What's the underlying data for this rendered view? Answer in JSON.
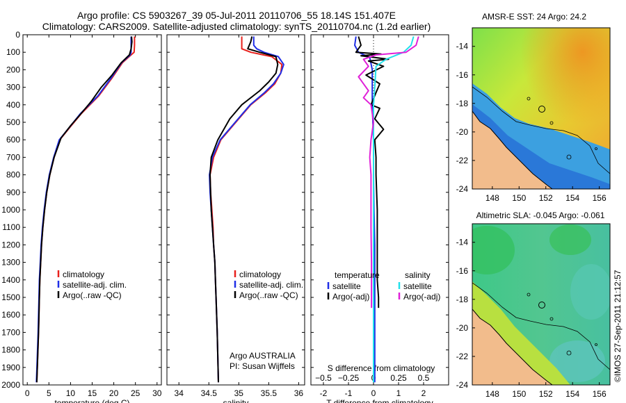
{
  "header": {
    "title_line1": "Argo profile: CS 5903267_39 05-Jul-2011 20110706_55 18.14S 151.407E",
    "title_line2": "Climatology: CARS2009. Satellite-adjusted climatology: synTS_20110704.nc (1.2d earlier)"
  },
  "credits": {
    "institution": "Argo AUSTRALIA",
    "pi": "PI: Susan Wijffels",
    "stamp": "©IMOS 27-Sep-2011 21:12:57"
  },
  "colors": {
    "climatology": "#e8201c",
    "satellite": "#1f2ee6",
    "argo": "#000000",
    "sal_satellite": "#22e0ea",
    "sal_argo": "#e020d8",
    "land": "#f2bc8c"
  },
  "chart_data": [
    {
      "type": "line",
      "id": "temperature",
      "xlabel": "temperature (deg C)",
      "xlim": [
        -1,
        31
      ],
      "xticks": [
        0,
        5,
        10,
        15,
        20,
        25,
        30
      ],
      "ylim": [
        2000,
        0
      ],
      "yticks": [
        0,
        100,
        200,
        300,
        400,
        500,
        600,
        700,
        800,
        900,
        1000,
        1100,
        1200,
        1300,
        1400,
        1500,
        1600,
        1700,
        1800,
        1900,
        2000
      ],
      "legend": [
        "climatology",
        "satellite-adj. clim.",
        "Argo(..raw -QC)"
      ],
      "series": [
        {
          "name": "climatology",
          "color": "climatology",
          "points": [
            [
              24.8,
              10
            ],
            [
              24.8,
              60
            ],
            [
              24.7,
              100
            ],
            [
              24.0,
              115
            ],
            [
              22.0,
              160
            ],
            [
              19.5,
              250
            ],
            [
              16.5,
              350
            ],
            [
              12.5,
              450
            ],
            [
              9.8,
              530
            ],
            [
              7.5,
              600
            ],
            [
              6.2,
              700
            ],
            [
              5.2,
              800
            ],
            [
              4.5,
              900
            ],
            [
              4.0,
              1000
            ],
            [
              3.6,
              1100
            ],
            [
              3.3,
              1200
            ],
            [
              3.1,
              1300
            ],
            [
              2.9,
              1400
            ],
            [
              2.8,
              1500
            ],
            [
              2.6,
              1700
            ],
            [
              2.4,
              1850
            ],
            [
              2.2,
              1985
            ]
          ]
        },
        {
          "name": "satellite-adj. clim.",
          "color": "satellite",
          "points": [
            [
              24.0,
              10
            ],
            [
              24.0,
              60
            ],
            [
              24.0,
              100
            ],
            [
              23.8,
              115
            ],
            [
              21.8,
              160
            ],
            [
              19.3,
              250
            ],
            [
              16.3,
              350
            ],
            [
              12.3,
              450
            ],
            [
              9.7,
              530
            ],
            [
              7.4,
              600
            ],
            [
              6.1,
              700
            ],
            [
              5.1,
              800
            ],
            [
              4.4,
              900
            ],
            [
              3.9,
              1000
            ],
            [
              3.5,
              1100
            ],
            [
              3.2,
              1200
            ],
            [
              3.0,
              1300
            ],
            [
              2.8,
              1400
            ],
            [
              2.7,
              1500
            ],
            [
              2.5,
              1700
            ],
            [
              2.3,
              1850
            ],
            [
              2.1,
              1985
            ]
          ]
        },
        {
          "name": "Argo(..raw -QC)",
          "color": "argo",
          "points": [
            [
              24.1,
              10
            ],
            [
              24.2,
              40
            ],
            [
              24.0,
              80
            ],
            [
              23.6,
              115
            ],
            [
              21.7,
              160
            ],
            [
              19.6,
              230
            ],
            [
              17.1,
              300
            ],
            [
              14.8,
              380
            ],
            [
              12.1,
              460
            ],
            [
              10.0,
              520
            ],
            [
              7.8,
              590
            ],
            [
              6.2,
              700
            ],
            [
              5.2,
              800
            ],
            [
              4.5,
              900
            ],
            [
              4.0,
              1000
            ],
            [
              3.6,
              1100
            ],
            [
              3.3,
              1200
            ],
            [
              3.1,
              1300
            ],
            [
              2.9,
              1400
            ],
            [
              2.8,
              1500
            ],
            [
              2.6,
              1700
            ],
            [
              2.4,
              1850
            ],
            [
              2.2,
              1985
            ]
          ]
        }
      ]
    },
    {
      "type": "line",
      "id": "salinity",
      "xlabel": "salinity",
      "xlim": [
        33.8,
        36.1
      ],
      "xticks": [
        34,
        34.5,
        35,
        35.5,
        36
      ],
      "ylim": [
        2000,
        0
      ],
      "legend": [
        "climatology",
        "satellite-adj. clim.",
        "Argo(..raw -QC)"
      ],
      "series": [
        {
          "name": "climatology",
          "color": "climatology",
          "points": [
            [
              35.05,
              10
            ],
            [
              35.05,
              60
            ],
            [
              35.05,
              80
            ],
            [
              35.2,
              100
            ],
            [
              35.55,
              125
            ],
            [
              35.72,
              170
            ],
            [
              35.7,
              220
            ],
            [
              35.6,
              280
            ],
            [
              35.45,
              330
            ],
            [
              35.2,
              400
            ],
            [
              34.95,
              500
            ],
            [
              34.7,
              600
            ],
            [
              34.58,
              700
            ],
            [
              34.52,
              800
            ],
            [
              34.53,
              900
            ],
            [
              34.55,
              1000
            ],
            [
              34.57,
              1100
            ],
            [
              34.58,
              1200
            ],
            [
              34.6,
              1300
            ],
            [
              34.61,
              1400
            ],
            [
              34.62,
              1500
            ],
            [
              34.64,
              1700
            ],
            [
              34.65,
              1850
            ],
            [
              34.66,
              1985
            ]
          ]
        },
        {
          "name": "satellite-adj. clim.",
          "color": "satellite",
          "points": [
            [
              35.25,
              10
            ],
            [
              35.25,
              60
            ],
            [
              35.3,
              80
            ],
            [
              35.42,
              100
            ],
            [
              35.66,
              125
            ],
            [
              35.75,
              170
            ],
            [
              35.7,
              220
            ],
            [
              35.58,
              280
            ],
            [
              35.43,
              330
            ],
            [
              35.19,
              400
            ],
            [
              34.94,
              500
            ],
            [
              34.69,
              600
            ],
            [
              34.56,
              700
            ],
            [
              34.51,
              800
            ],
            [
              34.52,
              900
            ],
            [
              34.54,
              1000
            ],
            [
              34.56,
              1100
            ],
            [
              34.58,
              1200
            ],
            [
              34.6,
              1300
            ],
            [
              34.61,
              1400
            ],
            [
              34.62,
              1500
            ],
            [
              34.64,
              1700
            ],
            [
              34.65,
              1850
            ],
            [
              34.66,
              1985
            ]
          ]
        },
        {
          "name": "Argo(..raw -QC)",
          "color": "argo",
          "points": [
            [
              35.22,
              10
            ],
            [
              35.2,
              40
            ],
            [
              35.15,
              80
            ],
            [
              35.35,
              100
            ],
            [
              35.62,
              125
            ],
            [
              35.65,
              170
            ],
            [
              35.62,
              220
            ],
            [
              35.5,
              270
            ],
            [
              35.35,
              320
            ],
            [
              35.05,
              400
            ],
            [
              34.85,
              480
            ],
            [
              34.65,
              600
            ],
            [
              34.54,
              700
            ],
            [
              34.52,
              800
            ],
            [
              34.53,
              900
            ],
            [
              34.54,
              1000
            ],
            [
              34.56,
              1100
            ],
            [
              34.58,
              1200
            ],
            [
              34.6,
              1300
            ],
            [
              34.61,
              1400
            ],
            [
              34.62,
              1500
            ],
            [
              34.64,
              1700
            ],
            [
              34.65,
              1850
            ],
            [
              34.66,
              1985
            ]
          ]
        }
      ]
    },
    {
      "type": "line",
      "id": "differences",
      "xlabel": "T difference from climatology",
      "xlabel_top": "S difference from climatology",
      "xlim": [
        -2.5,
        3
      ],
      "xticks": [
        -2,
        -1,
        0,
        1,
        2
      ],
      "top_ticks": [
        {
          "v": -2,
          "label": "−0.5"
        },
        {
          "v": -1,
          "label": "−0.25"
        },
        {
          "v": 0,
          "label": "0"
        },
        {
          "v": 1,
          "label": "0.25"
        },
        {
          "v": 2,
          "label": "0.5"
        }
      ],
      "ylim": [
        2000,
        0
      ],
      "legend_temperature": {
        "header": "temperature",
        "items": [
          "satellite",
          "Argo(-adj)"
        ]
      },
      "legend_salinity": {
        "header": "salinity",
        "items": [
          "satellite",
          "Argo(-adj)"
        ]
      },
      "series": [
        {
          "name": "temperature satellite",
          "color": "satellite",
          "points": [
            [
              -0.7,
              10
            ],
            [
              -0.75,
              60
            ],
            [
              -0.6,
              100
            ],
            [
              -0.15,
              130
            ],
            [
              -0.05,
              200
            ],
            [
              -0.05,
              400
            ],
            [
              0.0,
              600
            ],
            [
              0.0,
              800
            ],
            [
              0.02,
              1000
            ],
            [
              0.05,
              1200
            ],
            [
              0.05,
              1500
            ],
            [
              0.05,
              1800
            ],
            [
              0.05,
              1985
            ]
          ]
        },
        {
          "name": "temperature Argo(-adj)",
          "color": "argo",
          "points": [
            [
              -0.6,
              10
            ],
            [
              -0.5,
              60
            ],
            [
              -0.7,
              100
            ],
            [
              0.3,
              110
            ],
            [
              -0.5,
              120
            ],
            [
              0.6,
              140
            ],
            [
              -0.2,
              150
            ],
            [
              0.4,
              180
            ],
            [
              -0.3,
              230
            ],
            [
              0.25,
              280
            ],
            [
              0.1,
              330
            ],
            [
              -0.1,
              400
            ],
            [
              0.25,
              420
            ],
            [
              0.05,
              480
            ],
            [
              0.4,
              540
            ],
            [
              0.05,
              600
            ],
            [
              0.1,
              700
            ],
            [
              0.1,
              800
            ],
            [
              0.15,
              1000
            ],
            [
              0.15,
              1200
            ],
            [
              0.15,
              1400
            ],
            [
              0.2,
              1500
            ],
            [
              0.2,
              1560
            ]
          ]
        },
        {
          "name": "salinity satellite",
          "color": "sal_satellite",
          "points": [
            [
              1.6,
              10
            ],
            [
              1.5,
              60
            ],
            [
              1.2,
              100
            ],
            [
              0.5,
              140
            ],
            [
              0.1,
              180
            ],
            [
              0.05,
              300
            ],
            [
              0.0,
              400
            ],
            [
              0.0,
              600
            ],
            [
              0.0,
              800
            ],
            [
              0.0,
              1000
            ],
            [
              0.0,
              1200
            ],
            [
              0.0,
              1500
            ],
            [
              0.0,
              1800
            ],
            [
              0.0,
              1985
            ]
          ]
        },
        {
          "name": "salinity Argo(-adj)",
          "color": "sal_argo",
          "points": [
            [
              1.8,
              10
            ],
            [
              1.7,
              60
            ],
            [
              1.3,
              100
            ],
            [
              0.1,
              115
            ],
            [
              -0.4,
              140
            ],
            [
              -0.2,
              180
            ],
            [
              -0.6,
              240
            ],
            [
              -0.4,
              280
            ],
            [
              -0.2,
              320
            ],
            [
              -0.4,
              360
            ],
            [
              -0.1,
              400
            ],
            [
              0.0,
              500
            ],
            [
              -0.1,
              600
            ],
            [
              -0.15,
              700
            ],
            [
              -0.1,
              800
            ],
            [
              -0.1,
              900
            ],
            [
              -0.1,
              1100
            ],
            [
              -0.08,
              1300
            ],
            [
              -0.08,
              1500
            ],
            [
              -0.08,
              1560
            ]
          ]
        }
      ]
    },
    {
      "type": "heatmap",
      "id": "sst_map",
      "title": "AMSR-E SST: 24 Argo: 24.2",
      "xlim": [
        146.5,
        156.8
      ],
      "ylim": [
        -24,
        -12.7
      ],
      "xticks": [
        148,
        150,
        152,
        154,
        156
      ],
      "yticks": [
        -14,
        -16,
        -18,
        -20,
        -22,
        -24
      ],
      "argo_position": {
        "lon": 151.407,
        "lat": -18.14
      }
    },
    {
      "type": "heatmap",
      "id": "sla_map",
      "title": "Altimetric SLA: -0.045 Argo: -0.061",
      "xlim": [
        146.5,
        156.8
      ],
      "ylim": [
        -24,
        -12.7
      ],
      "xticks": [
        148,
        150,
        152,
        154,
        156
      ],
      "yticks": [
        -14,
        -16,
        -18,
        -20,
        -22,
        -24
      ],
      "argo_position": {
        "lon": 151.407,
        "lat": -18.14
      }
    }
  ]
}
